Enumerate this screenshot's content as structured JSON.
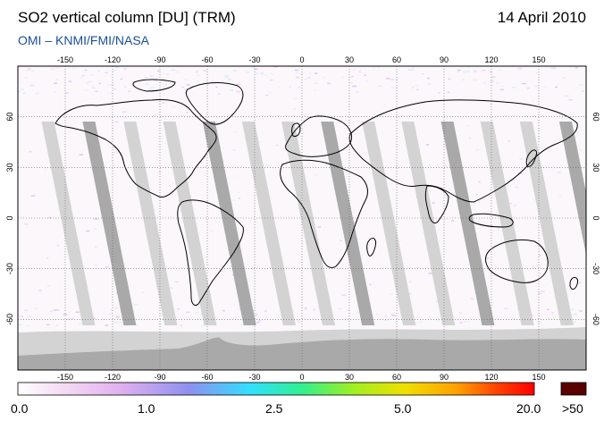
{
  "header": {
    "title": "SO2 vertical column [DU] (TRM)",
    "date": "14 April 2010",
    "subtitle": "OMI  –  KNMI/FMI/NASA"
  },
  "map": {
    "projection": "equirectangular",
    "lon_ticks": [
      "-150",
      "-120",
      "-90",
      "-60",
      "-30",
      "0",
      "30",
      "60",
      "90",
      "120",
      "150"
    ],
    "lat_ticks": [
      "60",
      "30",
      "0",
      "-30",
      "-60"
    ],
    "colors": {
      "no_data": "#d3d3d3",
      "orbit_overlap": "#a9a9a9",
      "land_outline": "#000000",
      "grid": "#666666"
    }
  },
  "colorbar": {
    "labels": [
      "0.0",
      "1.0",
      "2.5",
      "5.0",
      "20.0"
    ],
    "overflow_label": ">50",
    "overflow_color": "#5a0000",
    "gradient_stops": [
      "#ffffff",
      "#f3d6f3",
      "#e0b0f0",
      "#9090f0",
      "#30e0ff",
      "#30f090",
      "#a0f020",
      "#f0e000",
      "#ffa000",
      "#ff4000",
      "#ff0000"
    ]
  }
}
